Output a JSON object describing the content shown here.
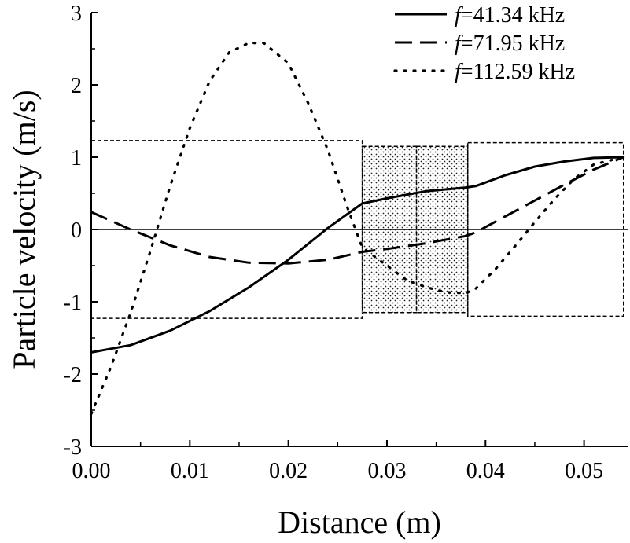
{
  "chart_data": {
    "type": "line",
    "xlabel": "Distance (m)",
    "ylabel": "Particle velocity (m/s)",
    "xlim": [
      0,
      0.0545
    ],
    "ylim": [
      -3,
      3
    ],
    "x_ticks": [
      "0.00",
      "0.01",
      "0.02",
      "0.03",
      "0.04",
      "0.05"
    ],
    "y_ticks": [
      "-3",
      "-2",
      "-1",
      "0",
      "1",
      "2",
      "3"
    ],
    "legend_position": "top-right",
    "series": [
      {
        "name": "f=41.34 kHz",
        "name_italic": "f",
        "name_rest": "=41.34 kHz",
        "style": "solid",
        "x": [
          0,
          0.004,
          0.008,
          0.012,
          0.016,
          0.02,
          0.024,
          0.0275,
          0.03,
          0.034,
          0.038,
          0.039,
          0.042,
          0.045,
          0.048,
          0.051,
          0.054
        ],
        "y": [
          -1.7,
          -1.6,
          -1.4,
          -1.13,
          -0.8,
          -0.42,
          0.02,
          0.36,
          0.43,
          0.53,
          0.58,
          0.6,
          0.75,
          0.87,
          0.94,
          0.99,
          1.0
        ]
      },
      {
        "name": "f=71.95 kHz",
        "name_italic": "f",
        "name_rest": "=71.95 kHz",
        "style": "dashed",
        "x": [
          0,
          0.004,
          0.008,
          0.012,
          0.016,
          0.02,
          0.024,
          0.0275,
          0.03,
          0.034,
          0.038,
          0.039,
          0.042,
          0.045,
          0.048,
          0.051,
          0.054
        ],
        "y": [
          0.24,
          0.0,
          -0.22,
          -0.38,
          -0.46,
          -0.47,
          -0.42,
          -0.31,
          -0.27,
          -0.19,
          -0.09,
          -0.04,
          0.18,
          0.4,
          0.62,
          0.83,
          1.0
        ]
      },
      {
        "name": "f=112.59 kHz",
        "name_italic": "f",
        "name_rest": "=112.59 kHz",
        "style": "dotted",
        "x": [
          0,
          0.002,
          0.004,
          0.006,
          0.008,
          0.01,
          0.012,
          0.014,
          0.016,
          0.0175,
          0.02,
          0.022,
          0.024,
          0.026,
          0.0275,
          0.03,
          0.032,
          0.034,
          0.036,
          0.038,
          0.039,
          0.041,
          0.043,
          0.045,
          0.047,
          0.049,
          0.051,
          0.054
        ],
        "y": [
          -2.55,
          -1.9,
          -1.15,
          -0.3,
          0.6,
          1.4,
          2.05,
          2.45,
          2.58,
          2.58,
          2.3,
          1.75,
          1.1,
          0.3,
          -0.25,
          -0.5,
          -0.7,
          -0.8,
          -0.87,
          -0.88,
          -0.82,
          -0.55,
          -0.23,
          0.1,
          0.42,
          0.7,
          0.9,
          1.0
        ]
      }
    ],
    "regions": [
      {
        "x0": 0.0,
        "x1": 0.0275,
        "y0": -1.23,
        "y1": 1.23,
        "fill": "none"
      },
      {
        "x0": 0.0275,
        "x1": 0.033,
        "y0": -1.15,
        "y1": 1.15,
        "fill": "dotted"
      },
      {
        "x0": 0.033,
        "x1": 0.0382,
        "y0": -1.15,
        "y1": 1.15,
        "fill": "dotted"
      },
      {
        "x0": 0.0382,
        "x1": 0.054,
        "y0": -1.2,
        "y1": 1.2,
        "fill": "none"
      }
    ]
  }
}
